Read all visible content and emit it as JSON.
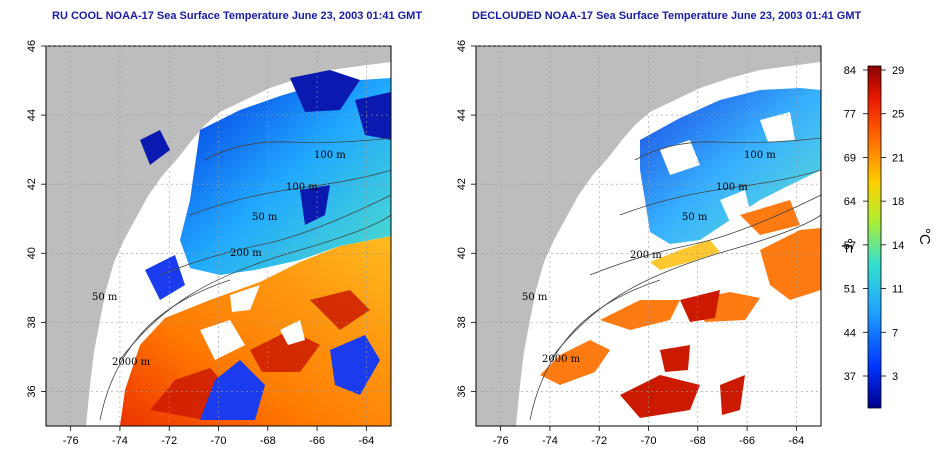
{
  "panels": [
    {
      "id": "left",
      "title": "RU COOL NOAA-17 Sea Surface Temperature June 23, 2003 01:41 GMT",
      "contour_labels": [
        "100 m",
        "100 m",
        "50 m",
        "200 m",
        "50 m",
        "2000 m"
      ]
    },
    {
      "id": "right",
      "title": "DECLOUDED NOAA-17 Sea Surface Temperature June 23, 2003 01:41 GMT",
      "contour_labels": [
        "100 m",
        "100 m",
        "50 m",
        "200 m",
        "50 m",
        "2000 m"
      ]
    }
  ],
  "axes": {
    "x_ticks": [
      "-76",
      "-74",
      "-72",
      "-70",
      "-68",
      "-66",
      "-64"
    ],
    "y_ticks": [
      "36",
      "38",
      "40",
      "42",
      "44",
      "46"
    ]
  },
  "colorbar": {
    "fahrenheit_ticks": [
      "84",
      "77",
      "69",
      "64",
      "57",
      "51",
      "44",
      "37"
    ],
    "celsius_ticks": [
      "29",
      "25",
      "21",
      "18",
      "14",
      "11",
      "7",
      "3"
    ],
    "fahrenheit_label": "°F",
    "celsius_label": "°C"
  },
  "colors": {
    "land": "#bdbdbd",
    "title": "#1a1aa6",
    "cold": "#0000a0",
    "warm": "#a00000"
  }
}
